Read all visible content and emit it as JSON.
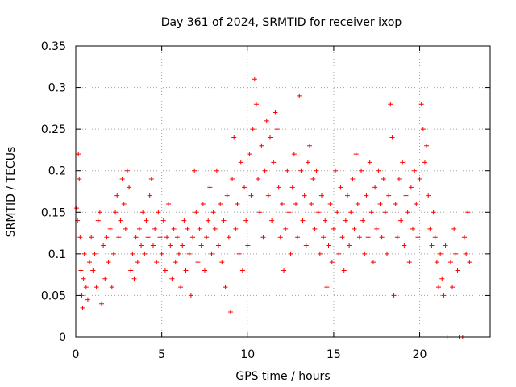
{
  "chart_data": {
    "type": "scatter",
    "title": "Day 361 of 2024, SRMTID for receiver ixop",
    "xlabel": "GPS time / hours",
    "ylabel": "SRMTID / TECUs",
    "xlim": [
      0,
      24.1
    ],
    "ylim": [
      0,
      0.35
    ],
    "grid": true,
    "marker": "+",
    "color": "#ff0000",
    "x_ticks": [
      0,
      5,
      10,
      15,
      20
    ],
    "x_tick_labels": [
      "0",
      "5",
      "10",
      "15",
      "20"
    ],
    "y_ticks": [
      0,
      0.05,
      0.1,
      0.15,
      0.2,
      0.25,
      0.3,
      0.35
    ],
    "y_tick_labels": [
      "0",
      "0.05",
      "0.1",
      "0.15",
      "0.2",
      "0.25",
      "0.3",
      "0.35"
    ],
    "series": [
      {
        "name": "SRMTID",
        "points": [
          [
            0.05,
            0.155
          ],
          [
            0.1,
            0.14
          ],
          [
            0.15,
            0.22
          ],
          [
            0.2,
            0.19
          ],
          [
            0.25,
            0.12
          ],
          [
            0.3,
            0.08
          ],
          [
            0.35,
            0.05
          ],
          [
            0.4,
            0.035
          ],
          [
            0.45,
            0.07
          ],
          [
            0.5,
            0.1
          ],
          [
            0.6,
            0.06
          ],
          [
            0.7,
            0.045
          ],
          [
            0.8,
            0.09
          ],
          [
            0.9,
            0.12
          ],
          [
            1.0,
            0.08
          ],
          [
            1.1,
            0.1
          ],
          [
            1.2,
            0.06
          ],
          [
            1.3,
            0.14
          ],
          [
            1.4,
            0.15
          ],
          [
            1.5,
            0.04
          ],
          [
            1.6,
            0.11
          ],
          [
            1.7,
            0.07
          ],
          [
            1.8,
            0.12
          ],
          [
            1.9,
            0.09
          ],
          [
            2.0,
            0.13
          ],
          [
            2.1,
            0.06
          ],
          [
            2.2,
            0.1
          ],
          [
            2.3,
            0.15
          ],
          [
            2.4,
            0.17
          ],
          [
            2.5,
            0.12
          ],
          [
            2.6,
            0.14
          ],
          [
            2.7,
            0.19
          ],
          [
            2.8,
            0.16
          ],
          [
            2.9,
            0.13
          ],
          [
            3.0,
            0.2
          ],
          [
            3.1,
            0.18
          ],
          [
            3.2,
            0.08
          ],
          [
            3.3,
            0.1
          ],
          [
            3.4,
            0.07
          ],
          [
            3.5,
            0.12
          ],
          [
            3.6,
            0.09
          ],
          [
            3.7,
            0.13
          ],
          [
            3.8,
            0.11
          ],
          [
            3.9,
            0.15
          ],
          [
            4.0,
            0.1
          ],
          [
            4.1,
            0.14
          ],
          [
            4.2,
            0.12
          ],
          [
            4.3,
            0.17
          ],
          [
            4.4,
            0.19
          ],
          [
            4.5,
            0.11
          ],
          [
            4.6,
            0.13
          ],
          [
            4.7,
            0.09
          ],
          [
            4.8,
            0.15
          ],
          [
            4.9,
            0.12
          ],
          [
            5.0,
            0.1
          ],
          [
            5.1,
            0.14
          ],
          [
            5.2,
            0.08
          ],
          [
            5.3,
            0.12
          ],
          [
            5.4,
            0.16
          ],
          [
            5.5,
            0.11
          ],
          [
            5.6,
            0.07
          ],
          [
            5.7,
            0.13
          ],
          [
            5.8,
            0.09
          ],
          [
            5.9,
            0.12
          ],
          [
            6.0,
            0.1
          ],
          [
            6.1,
            0.06
          ],
          [
            6.2,
            0.11
          ],
          [
            6.3,
            0.14
          ],
          [
            6.4,
            0.08
          ],
          [
            6.5,
            0.13
          ],
          [
            6.6,
            0.1
          ],
          [
            6.7,
            0.05
          ],
          [
            6.8,
            0.12
          ],
          [
            6.9,
            0.2
          ],
          [
            7.0,
            0.15
          ],
          [
            7.1,
            0.09
          ],
          [
            7.2,
            0.13
          ],
          [
            7.3,
            0.11
          ],
          [
            7.4,
            0.16
          ],
          [
            7.5,
            0.08
          ],
          [
            7.6,
            0.12
          ],
          [
            7.7,
            0.14
          ],
          [
            7.8,
            0.18
          ],
          [
            7.9,
            0.1
          ],
          [
            8.0,
            0.15
          ],
          [
            8.1,
            0.13
          ],
          [
            8.2,
            0.2
          ],
          [
            8.3,
            0.11
          ],
          [
            8.4,
            0.16
          ],
          [
            8.5,
            0.09
          ],
          [
            8.6,
            0.14
          ],
          [
            8.7,
            0.06
          ],
          [
            8.8,
            0.17
          ],
          [
            8.9,
            0.12
          ],
          [
            9.0,
            0.03
          ],
          [
            9.1,
            0.19
          ],
          [
            9.2,
            0.24
          ],
          [
            9.3,
            0.13
          ],
          [
            9.4,
            0.16
          ],
          [
            9.5,
            0.1
          ],
          [
            9.6,
            0.21
          ],
          [
            9.7,
            0.08
          ],
          [
            9.8,
            0.18
          ],
          [
            9.9,
            0.14
          ],
          [
            10.0,
            0.11
          ],
          [
            10.1,
            0.22
          ],
          [
            10.2,
            0.17
          ],
          [
            10.3,
            0.25
          ],
          [
            10.4,
            0.31
          ],
          [
            10.5,
            0.28
          ],
          [
            10.6,
            0.19
          ],
          [
            10.7,
            0.15
          ],
          [
            10.8,
            0.23
          ],
          [
            10.9,
            0.12
          ],
          [
            11.0,
            0.2
          ],
          [
            11.1,
            0.26
          ],
          [
            11.2,
            0.17
          ],
          [
            11.3,
            0.24
          ],
          [
            11.4,
            0.14
          ],
          [
            11.5,
            0.21
          ],
          [
            11.6,
            0.27
          ],
          [
            11.7,
            0.25
          ],
          [
            11.8,
            0.18
          ],
          [
            11.9,
            0.12
          ],
          [
            12.0,
            0.16
          ],
          [
            12.1,
            0.08
          ],
          [
            12.2,
            0.13
          ],
          [
            12.3,
            0.2
          ],
          [
            12.4,
            0.15
          ],
          [
            12.5,
            0.1
          ],
          [
            12.6,
            0.18
          ],
          [
            12.7,
            0.22
          ],
          [
            12.8,
            0.16
          ],
          [
            12.9,
            0.12
          ],
          [
            13.0,
            0.29
          ],
          [
            13.1,
            0.2
          ],
          [
            13.2,
            0.14
          ],
          [
            13.3,
            0.17
          ],
          [
            13.4,
            0.11
          ],
          [
            13.5,
            0.21
          ],
          [
            13.6,
            0.23
          ],
          [
            13.7,
            0.16
          ],
          [
            13.8,
            0.19
          ],
          [
            13.9,
            0.13
          ],
          [
            14.0,
            0.2
          ],
          [
            14.1,
            0.15
          ],
          [
            14.2,
            0.1
          ],
          [
            14.3,
            0.17
          ],
          [
            14.4,
            0.12
          ],
          [
            14.5,
            0.14
          ],
          [
            14.6,
            0.06
          ],
          [
            14.7,
            0.11
          ],
          [
            14.8,
            0.16
          ],
          [
            14.9,
            0.09
          ],
          [
            15.0,
            0.13
          ],
          [
            15.1,
            0.2
          ],
          [
            15.2,
            0.15
          ],
          [
            15.3,
            0.1
          ],
          [
            15.4,
            0.18
          ],
          [
            15.5,
            0.12
          ],
          [
            15.6,
            0.08
          ],
          [
            15.7,
            0.14
          ],
          [
            15.8,
            0.17
          ],
          [
            15.9,
            0.11
          ],
          [
            16.0,
            0.15
          ],
          [
            16.1,
            0.19
          ],
          [
            16.2,
            0.13
          ],
          [
            16.3,
            0.22
          ],
          [
            16.4,
            0.16
          ],
          [
            16.5,
            0.12
          ],
          [
            16.6,
            0.2
          ],
          [
            16.7,
            0.14
          ],
          [
            16.8,
            0.1
          ],
          [
            16.9,
            0.17
          ],
          [
            17.0,
            0.12
          ],
          [
            17.1,
            0.21
          ],
          [
            17.2,
            0.15
          ],
          [
            17.3,
            0.09
          ],
          [
            17.4,
            0.18
          ],
          [
            17.5,
            0.13
          ],
          [
            17.6,
            0.2
          ],
          [
            17.7,
            0.16
          ],
          [
            17.8,
            0.12
          ],
          [
            17.9,
            0.19
          ],
          [
            18.0,
            0.15
          ],
          [
            18.1,
            0.1
          ],
          [
            18.2,
            0.17
          ],
          [
            18.3,
            0.28
          ],
          [
            18.4,
            0.24
          ],
          [
            18.5,
            0.05
          ],
          [
            18.6,
            0.16
          ],
          [
            18.7,
            0.12
          ],
          [
            18.8,
            0.19
          ],
          [
            18.9,
            0.14
          ],
          [
            19.0,
            0.21
          ],
          [
            19.1,
            0.11
          ],
          [
            19.2,
            0.17
          ],
          [
            19.3,
            0.15
          ],
          [
            19.4,
            0.09
          ],
          [
            19.5,
            0.18
          ],
          [
            19.6,
            0.13
          ],
          [
            19.7,
            0.2
          ],
          [
            19.8,
            0.16
          ],
          [
            19.9,
            0.12
          ],
          [
            20.0,
            0.19
          ],
          [
            20.1,
            0.28
          ],
          [
            20.2,
            0.25
          ],
          [
            20.3,
            0.21
          ],
          [
            20.4,
            0.23
          ],
          [
            20.5,
            0.17
          ],
          [
            20.6,
            0.13
          ],
          [
            20.7,
            0.11
          ],
          [
            20.8,
            0.15
          ],
          [
            20.9,
            0.12
          ],
          [
            21.0,
            0.09
          ],
          [
            21.1,
            0.06
          ],
          [
            21.2,
            0.1
          ],
          [
            21.3,
            0.07
          ],
          [
            21.4,
            0.05
          ],
          [
            21.5,
            0.11
          ],
          [
            21.6,
            0.0
          ],
          [
            21.8,
            0.09
          ],
          [
            21.9,
            0.06
          ],
          [
            22.0,
            0.13
          ],
          [
            22.1,
            0.1
          ],
          [
            22.2,
            0.08
          ],
          [
            22.3,
            0.0
          ],
          [
            22.5,
            0.0
          ],
          [
            22.6,
            0.12
          ],
          [
            22.7,
            0.1
          ],
          [
            22.8,
            0.15
          ],
          [
            22.9,
            0.09
          ]
        ]
      }
    ]
  }
}
